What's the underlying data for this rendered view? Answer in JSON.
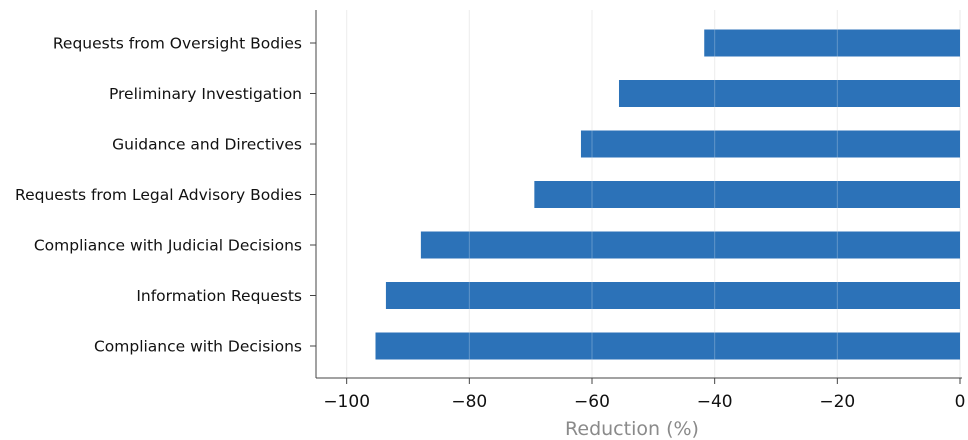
{
  "chart_data": {
    "type": "bar",
    "orientation": "horizontal",
    "title": "",
    "xlabel": "Reduction (%)",
    "ylabel": "",
    "xlim": [
      -105,
      0
    ],
    "xticks": [
      -100,
      -80,
      -60,
      -40,
      -20,
      0
    ],
    "xtick_labels": [
      "−100",
      "−80",
      "−60",
      "−40",
      "−20",
      "0"
    ],
    "grid": "vertical gridlines",
    "bar_color": "#2c72b8",
    "categories": [
      "Requests from Oversight Bodies",
      "Preliminary Investigation",
      "Guidance and Directives",
      "Requests from Legal Advisory Bodies",
      "Compliance with Judicial Decisions",
      "Information Requests",
      "Compliance with Decisions"
    ],
    "values": [
      -41.7,
      -55.6,
      -61.8,
      -69.4,
      -87.9,
      -93.6,
      -95.3
    ]
  }
}
